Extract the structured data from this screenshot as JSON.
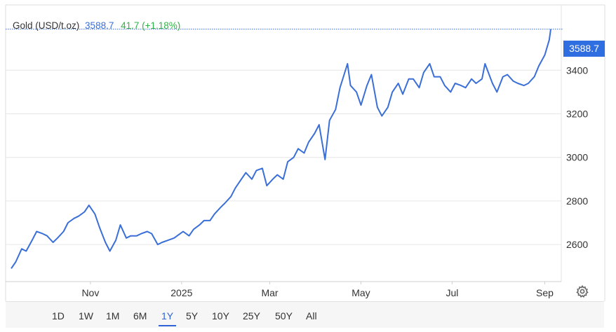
{
  "header": {
    "name": "Gold (USD/t.oz)",
    "price": "3588.7",
    "change": "41.7 (+1.18%)"
  },
  "price_tag": "3588.7",
  "range_buttons": [
    "1D",
    "1W",
    "1M",
    "6M",
    "1Y",
    "5Y",
    "10Y",
    "25Y",
    "50Y",
    "All"
  ],
  "active_range": "1Y",
  "colors": {
    "line": "#3a6fd8",
    "tag": "#2f6ee0",
    "change": "#2fb344",
    "grid": "#e6e6e6"
  },
  "chart_data": {
    "type": "line",
    "title": "Gold (USD/t.oz)",
    "x_tick_labels": [
      "Nov",
      "2025",
      "Mar",
      "May",
      "Jul",
      "Sep"
    ],
    "y_ticks": [
      2600,
      2800,
      3000,
      3200,
      3400
    ],
    "ylim": [
      2430,
      3700
    ],
    "grid": true,
    "last_value": 3588.7,
    "series": [
      {
        "name": "Gold (USD/t.oz)",
        "x": [
          "2024-09-09",
          "2024-09-12",
          "2024-09-16",
          "2024-09-19",
          "2024-09-23",
          "2024-09-26",
          "2024-09-30",
          "2024-10-03",
          "2024-10-07",
          "2024-10-10",
          "2024-10-14",
          "2024-10-17",
          "2024-10-21",
          "2024-10-24",
          "2024-10-28",
          "2024-10-31",
          "2024-11-04",
          "2024-11-07",
          "2024-11-11",
          "2024-11-14",
          "2024-11-18",
          "2024-11-21",
          "2024-11-25",
          "2024-11-28",
          "2024-12-02",
          "2024-12-05",
          "2024-12-09",
          "2024-12-12",
          "2024-12-16",
          "2024-12-19",
          "2024-12-23",
          "2024-12-27",
          "2025-01-02",
          "2025-01-06",
          "2025-01-09",
          "2025-01-13",
          "2025-01-16",
          "2025-01-20",
          "2025-01-23",
          "2025-01-27",
          "2025-01-30",
          "2025-02-03",
          "2025-02-06",
          "2025-02-10",
          "2025-02-13",
          "2025-02-17",
          "2025-02-20",
          "2025-02-24",
          "2025-02-27",
          "2025-03-03",
          "2025-03-06",
          "2025-03-10",
          "2025-03-13",
          "2025-03-17",
          "2025-03-20",
          "2025-03-24",
          "2025-03-27",
          "2025-03-31",
          "2025-04-03",
          "2025-04-07",
          "2025-04-10",
          "2025-04-14",
          "2025-04-17",
          "2025-04-22",
          "2025-04-24",
          "2025-04-28",
          "2025-05-01",
          "2025-05-05",
          "2025-05-08",
          "2025-05-12",
          "2025-05-15",
          "2025-05-19",
          "2025-05-22",
          "2025-05-26",
          "2025-05-29",
          "2025-06-02",
          "2025-06-05",
          "2025-06-09",
          "2025-06-12",
          "2025-06-16",
          "2025-06-19",
          "2025-06-23",
          "2025-06-26",
          "2025-06-30",
          "2025-07-03",
          "2025-07-07",
          "2025-07-10",
          "2025-07-14",
          "2025-07-17",
          "2025-07-21",
          "2025-07-23",
          "2025-07-28",
          "2025-07-31",
          "2025-08-04",
          "2025-08-07",
          "2025-08-11",
          "2025-08-14",
          "2025-08-18",
          "2025-08-21",
          "2025-08-25",
          "2025-08-28",
          "2025-09-01",
          "2025-09-04",
          "2025-09-05"
        ],
        "values": [
          2490,
          2520,
          2580,
          2570,
          2620,
          2660,
          2650,
          2640,
          2610,
          2630,
          2660,
          2700,
          2720,
          2730,
          2750,
          2780,
          2740,
          2680,
          2610,
          2570,
          2620,
          2690,
          2630,
          2640,
          2640,
          2650,
          2660,
          2650,
          2600,
          2610,
          2620,
          2630,
          2660,
          2640,
          2670,
          2690,
          2710,
          2710,
          2740,
          2770,
          2790,
          2820,
          2860,
          2900,
          2930,
          2900,
          2940,
          2950,
          2870,
          2900,
          2920,
          2900,
          2980,
          3000,
          3040,
          3020,
          3070,
          3110,
          3150,
          2990,
          3170,
          3220,
          3320,
          3430,
          3330,
          3300,
          3240,
          3330,
          3380,
          3230,
          3190,
          3230,
          3300,
          3340,
          3290,
          3360,
          3360,
          3320,
          3390,
          3430,
          3370,
          3370,
          3330,
          3300,
          3340,
          3330,
          3320,
          3360,
          3340,
          3360,
          3430,
          3340,
          3300,
          3370,
          3380,
          3350,
          3340,
          3330,
          3340,
          3370,
          3420,
          3470,
          3540,
          3588.7
        ]
      }
    ]
  }
}
